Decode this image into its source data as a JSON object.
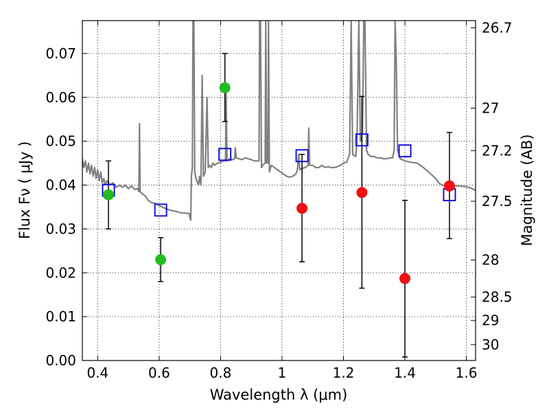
{
  "chart_data": {
    "type": "scatter",
    "xlabel": "Wavelength  λ (μm)",
    "ylabel": "Flux  Fν  ( μJy )",
    "ylabel_right": "Magnitude (AB)",
    "xlim": [
      0.35,
      1.63
    ],
    "ylim": [
      0.0,
      0.0775
    ],
    "grid": true,
    "x_ticks": [
      {
        "value": 0.4,
        "label": "0.4"
      },
      {
        "value": 0.6,
        "label": "0.6"
      },
      {
        "value": 0.8,
        "label": "0.8"
      },
      {
        "value": 1.0,
        "label": "1"
      },
      {
        "value": 1.2,
        "label": "1.2"
      },
      {
        "value": 1.4,
        "label": "1.4"
      },
      {
        "value": 1.6,
        "label": "1.6"
      }
    ],
    "y_ticks": [
      {
        "value": 0.0,
        "label": "0.00"
      },
      {
        "value": 0.01,
        "label": "0.01"
      },
      {
        "value": 0.02,
        "label": "0.02"
      },
      {
        "value": 0.03,
        "label": "0.03"
      },
      {
        "value": 0.04,
        "label": "0.04"
      },
      {
        "value": 0.05,
        "label": "0.05"
      },
      {
        "value": 0.06,
        "label": "0.06"
      },
      {
        "value": 0.07,
        "label": "0.07"
      }
    ],
    "right_ticks": [
      {
        "mag": 26.7,
        "label": "26.7"
      },
      {
        "mag": 27,
        "label": "27"
      },
      {
        "mag": 27.2,
        "label": "27.2"
      },
      {
        "mag": 27.5,
        "label": "27.5"
      },
      {
        "mag": 28,
        "label": "28"
      },
      {
        "mag": 28.5,
        "label": "28.5"
      },
      {
        "mag": 29,
        "label": "29"
      },
      {
        "mag": 30,
        "label": "30"
      }
    ],
    "colors": {
      "green": "#22bb22",
      "red": "#ee1111",
      "model_squares": "#1111dd",
      "spectrum": "#808080",
      "error_bars": "#000000"
    },
    "series": [
      {
        "marker": "circle",
        "color": "#22bb22",
        "points": [
          {
            "x": 0.435,
            "y": 0.0378,
            "ylow": 0.03,
            "yhigh": 0.0455
          },
          {
            "x": 0.605,
            "y": 0.023,
            "ylow": 0.018,
            "yhigh": 0.028
          },
          {
            "x": 0.814,
            "y": 0.0622,
            "ylow": 0.0545,
            "yhigh": 0.07
          }
        ]
      },
      {
        "marker": "circle",
        "color": "#ee1111",
        "points": [
          {
            "x": 1.065,
            "y": 0.0347,
            "ylow": 0.0225,
            "yhigh": 0.047
          },
          {
            "x": 1.26,
            "y": 0.0383,
            "ylow": 0.0165,
            "yhigh": 0.0602
          },
          {
            "x": 1.4,
            "y": 0.0187,
            "ylow": 0.0008,
            "yhigh": 0.0365
          },
          {
            "x": 1.545,
            "y": 0.0398,
            "ylow": 0.0278,
            "yhigh": 0.052
          }
        ]
      },
      {
        "marker": "square",
        "color": "#1111dd",
        "points": [
          {
            "x": 0.435,
            "y": 0.0388
          },
          {
            "x": 0.605,
            "y": 0.0343
          },
          {
            "x": 0.814,
            "y": 0.047
          },
          {
            "x": 1.065,
            "y": 0.0467
          },
          {
            "x": 1.26,
            "y": 0.0503
          },
          {
            "x": 1.4,
            "y": 0.0478
          },
          {
            "x": 1.545,
            "y": 0.0378
          }
        ]
      }
    ],
    "spectrum": [
      [
        0.35,
        0.046
      ],
      [
        0.355,
        0.044
      ],
      [
        0.36,
        0.0455
      ],
      [
        0.365,
        0.043
      ],
      [
        0.37,
        0.045
      ],
      [
        0.375,
        0.0425
      ],
      [
        0.38,
        0.0445
      ],
      [
        0.385,
        0.042
      ],
      [
        0.39,
        0.044
      ],
      [
        0.395,
        0.0415
      ],
      [
        0.4,
        0.0435
      ],
      [
        0.405,
        0.041
      ],
      [
        0.41,
        0.043
      ],
      [
        0.415,
        0.0405
      ],
      [
        0.42,
        0.0415
      ],
      [
        0.425,
        0.04
      ],
      [
        0.43,
        0.041
      ],
      [
        0.44,
        0.04
      ],
      [
        0.45,
        0.0405
      ],
      [
        0.46,
        0.0395
      ],
      [
        0.47,
        0.04
      ],
      [
        0.48,
        0.0395
      ],
      [
        0.49,
        0.04
      ],
      [
        0.5,
        0.0392
      ],
      [
        0.51,
        0.0398
      ],
      [
        0.52,
        0.039
      ],
      [
        0.53,
        0.0392
      ],
      [
        0.534,
        0.0385
      ],
      [
        0.536,
        0.054
      ],
      [
        0.538,
        0.0385
      ],
      [
        0.545,
        0.038
      ],
      [
        0.555,
        0.0375
      ],
      [
        0.565,
        0.0365
      ],
      [
        0.575,
        0.036
      ],
      [
        0.59,
        0.0358
      ],
      [
        0.6,
        0.0353
      ],
      [
        0.61,
        0.035
      ],
      [
        0.625,
        0.0345
      ],
      [
        0.64,
        0.0342
      ],
      [
        0.655,
        0.034
      ],
      [
        0.67,
        0.0337
      ],
      [
        0.685,
        0.0336
      ],
      [
        0.698,
        0.0335
      ],
      [
        0.7,
        0.0325
      ],
      [
        0.703,
        0.032
      ],
      [
        0.705,
        0.042
      ],
      [
        0.708,
        0.044
      ],
      [
        0.71,
        0.0775
      ],
      [
        0.713,
        0.0775
      ],
      [
        0.716,
        0.043
      ],
      [
        0.72,
        0.0415
      ],
      [
        0.728,
        0.04
      ],
      [
        0.732,
        0.042
      ],
      [
        0.736,
        0.04
      ],
      [
        0.74,
        0.065
      ],
      [
        0.744,
        0.042
      ],
      [
        0.75,
        0.043
      ],
      [
        0.756,
        0.06
      ],
      [
        0.76,
        0.044
      ],
      [
        0.765,
        0.0445
      ],
      [
        0.77,
        0.044
      ],
      [
        0.775,
        0.045
      ],
      [
        0.78,
        0.0445
      ],
      [
        0.785,
        0.0448
      ],
      [
        0.79,
        0.045
      ],
      [
        0.8,
        0.0452
      ],
      [
        0.81,
        0.0455
      ],
      [
        0.816,
        0.0455
      ],
      [
        0.818,
        0.061
      ],
      [
        0.821,
        0.0455
      ],
      [
        0.83,
        0.046
      ],
      [
        0.84,
        0.0458
      ],
      [
        0.846,
        0.046
      ],
      [
        0.848,
        0.0485
      ],
      [
        0.851,
        0.0462
      ],
      [
        0.86,
        0.046
      ],
      [
        0.87,
        0.0458
      ],
      [
        0.88,
        0.0462
      ],
      [
        0.89,
        0.046
      ],
      [
        0.9,
        0.0458
      ],
      [
        0.91,
        0.0455
      ],
      [
        0.92,
        0.0455
      ],
      [
        0.925,
        0.0455
      ],
      [
        0.927,
        0.0775
      ],
      [
        0.93,
        0.0775
      ],
      [
        0.933,
        0.044
      ],
      [
        0.94,
        0.0448
      ],
      [
        0.945,
        0.045
      ],
      [
        0.947,
        0.0775
      ],
      [
        0.95,
        0.045
      ],
      [
        0.954,
        0.045
      ],
      [
        0.956,
        0.0775
      ],
      [
        0.959,
        0.043
      ],
      [
        0.965,
        0.0445
      ],
      [
        0.975,
        0.044
      ],
      [
        0.985,
        0.0435
      ],
      [
        0.995,
        0.043
      ],
      [
        1.005,
        0.0425
      ],
      [
        1.015,
        0.042
      ],
      [
        1.025,
        0.0418
      ],
      [
        1.035,
        0.042
      ],
      [
        1.045,
        0.0425
      ],
      [
        1.05,
        0.0435
      ],
      [
        1.054,
        0.047
      ],
      [
        1.058,
        0.0435
      ],
      [
        1.065,
        0.0438
      ],
      [
        1.075,
        0.044
      ],
      [
        1.085,
        0.0445
      ],
      [
        1.087,
        0.053
      ],
      [
        1.09,
        0.0445
      ],
      [
        1.1,
        0.0445
      ],
      [
        1.11,
        0.044
      ],
      [
        1.12,
        0.044
      ],
      [
        1.13,
        0.0445
      ],
      [
        1.14,
        0.044
      ],
      [
        1.15,
        0.0442
      ],
      [
        1.16,
        0.044
      ],
      [
        1.17,
        0.044
      ],
      [
        1.18,
        0.0442
      ],
      [
        1.19,
        0.0445
      ],
      [
        1.2,
        0.045
      ],
      [
        1.21,
        0.0452
      ],
      [
        1.22,
        0.047
      ],
      [
        1.225,
        0.0775
      ],
      [
        1.23,
        0.047
      ],
      [
        1.24,
        0.0465
      ],
      [
        1.244,
        0.05
      ],
      [
        1.25,
        0.0775
      ],
      [
        1.255,
        0.05
      ],
      [
        1.262,
        0.052
      ],
      [
        1.266,
        0.0775
      ],
      [
        1.27,
        0.0775
      ],
      [
        1.275,
        0.048
      ],
      [
        1.28,
        0.047
      ],
      [
        1.29,
        0.0465
      ],
      [
        1.3,
        0.0465
      ],
      [
        1.31,
        0.0462
      ],
      [
        1.32,
        0.0462
      ],
      [
        1.33,
        0.046
      ],
      [
        1.34,
        0.046
      ],
      [
        1.35,
        0.0462
      ],
      [
        1.36,
        0.0462
      ],
      [
        1.365,
        0.048
      ],
      [
        1.368,
        0.0775
      ],
      [
        1.372,
        0.068
      ],
      [
        1.376,
        0.048
      ],
      [
        1.385,
        0.046
      ],
      [
        1.4,
        0.0455
      ],
      [
        1.42,
        0.0452
      ],
      [
        1.44,
        0.045
      ],
      [
        1.46,
        0.044
      ],
      [
        1.48,
        0.0428
      ],
      [
        1.5,
        0.0415
      ],
      [
        1.51,
        0.0405
      ],
      [
        1.52,
        0.04
      ],
      [
        1.54,
        0.0398
      ],
      [
        1.56,
        0.0398
      ],
      [
        1.58,
        0.0398
      ],
      [
        1.6,
        0.0396
      ],
      [
        1.615,
        0.0393
      ],
      [
        1.63,
        0.0388
      ]
    ]
  }
}
